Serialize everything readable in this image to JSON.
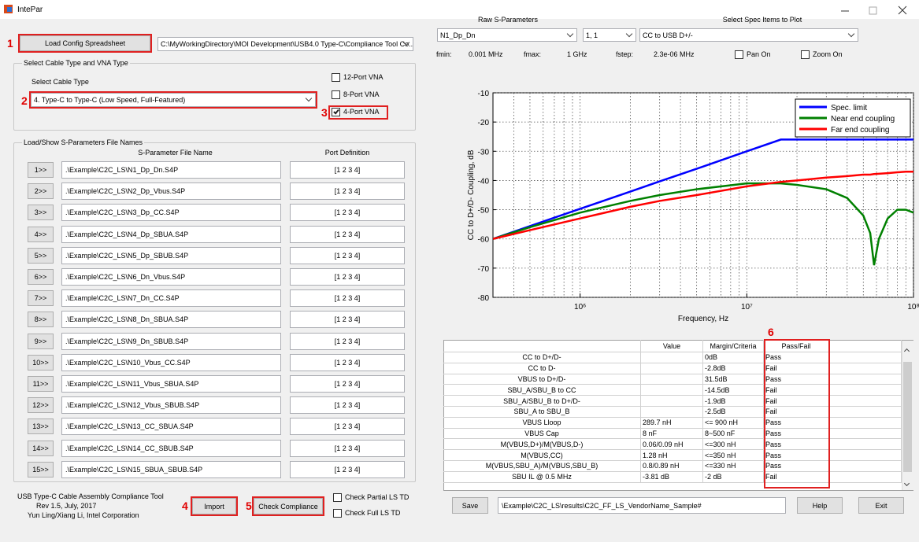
{
  "window_title": "IntePar",
  "markers": [
    "1",
    "2",
    "3",
    "4",
    "5",
    "6"
  ],
  "config": {
    "button": "Load Config Spreadsheet",
    "path": "C:\\MyWorkingDirectory\\MOI Development\\USB4.0 Type-C\\Compliance Tool Co..."
  },
  "cable_group": {
    "title": "Select Cable Type and VNA Type",
    "label": "Select Cable Type",
    "selected": "4. Type-C to Type-C (Low Speed, Full-Featured)",
    "vna": [
      {
        "label": "12-Port VNA",
        "checked": false
      },
      {
        "label": "8-Port VNA",
        "checked": false
      },
      {
        "label": "4-Port VNA",
        "checked": true
      }
    ]
  },
  "files_group": {
    "title": "Load/Show S-Parameters File Names",
    "headers": [
      "S-Parameter File Name",
      "Port Definition"
    ],
    "rows": [
      {
        "button": "1>>",
        "file": ".\\Example\\C2C_LS\\N1_Dp_Dn.S4P",
        "ports": "[1 2 3 4]"
      },
      {
        "button": "2>>",
        "file": ".\\Example\\C2C_LS\\N2_Dp_Vbus.S4P",
        "ports": "[1 2 3 4]"
      },
      {
        "button": "3>>",
        "file": ".\\Example\\C2C_LS\\N3_Dp_CC.S4P",
        "ports": "[1 2 3 4]"
      },
      {
        "button": "4>>",
        "file": ".\\Example\\C2C_LS\\N4_Dp_SBUA.S4P",
        "ports": "[1 2 3 4]"
      },
      {
        "button": "5>>",
        "file": ".\\Example\\C2C_LS\\N5_Dp_SBUB.S4P",
        "ports": "[1 2 3 4]"
      },
      {
        "button": "6>>",
        "file": ".\\Example\\C2C_LS\\N6_Dn_Vbus.S4P",
        "ports": "[1 2 3 4]"
      },
      {
        "button": "7>>",
        "file": ".\\Example\\C2C_LS\\N7_Dn_CC.S4P",
        "ports": "[1 2 3 4]"
      },
      {
        "button": "8>>",
        "file": ".\\Example\\C2C_LS\\N8_Dn_SBUA.S4P",
        "ports": "[1 2 3 4]"
      },
      {
        "button": "9>>",
        "file": ".\\Example\\C2C_LS\\N9_Dn_SBUB.S4P",
        "ports": "[1 2 3 4]"
      },
      {
        "button": "10>>",
        "file": ".\\Example\\C2C_LS\\N10_Vbus_CC.S4P",
        "ports": "[1 2 3 4]"
      },
      {
        "button": "11>>",
        "file": ".\\Example\\C2C_LS\\N11_Vbus_SBUA.S4P",
        "ports": "[1 2 3 4]"
      },
      {
        "button": "12>>",
        "file": ".\\Example\\C2C_LS\\N12_Vbus_SBUB.S4P",
        "ports": "[1 2 3 4]"
      },
      {
        "button": "13>>",
        "file": ".\\Example\\C2C_LS\\N13_CC_SBUA.S4P",
        "ports": "[1 2 3 4]"
      },
      {
        "button": "14>>",
        "file": ".\\Example\\C2C_LS\\N14_CC_SBUB.S4P",
        "ports": "[1 2 3 4]"
      },
      {
        "button": "15>>",
        "file": ".\\Example\\C2C_LS\\N15_SBUA_SBUB.S4P",
        "ports": "[1 2 3 4]"
      }
    ]
  },
  "footer": {
    "lines": [
      "USB Type-C Cable Assembly Compliance Tool",
      "Rev 1.5, July, 2017",
      "Yun Ling/Xiang Li, Intel Corporation"
    ],
    "import": "Import",
    "check": "Check Compliance",
    "options": [
      {
        "label": "Check Partial LS TD",
        "checked": false
      },
      {
        "label": "Check Full LS TD",
        "checked": false
      }
    ]
  },
  "plot_controls": {
    "raw_label": "Raw S-Parameters",
    "spec_label": "Select Spec Items to Plot",
    "file": "N1_Dp_Dn",
    "port": "1, 1",
    "spec": "CC to USB D+/-",
    "fmin_label": "fmin:",
    "fmin": "0.001 MHz",
    "fmax_label": "fmax:",
    "fmax": "1 GHz",
    "fstep_label": "fstep:",
    "fstep": "2.3e-06 MHz",
    "pan": {
      "label": "Pan On",
      "checked": false
    },
    "zoom": {
      "label": "Zoom On",
      "checked": false
    }
  },
  "chart_data": {
    "type": "line",
    "xlabel": "Frequency, Hz",
    "ylabel": "CC to D+/D- Coupling, dB",
    "x": [
      300000,
      500000,
      1000000,
      2000000,
      3000000,
      5000000,
      10000000,
      16000000,
      20000000,
      30000000,
      40000000,
      50000000,
      55000000,
      58000000,
      62000000,
      70000000,
      80000000,
      90000000,
      100000000
    ],
    "series": [
      {
        "name": "Spec. limit",
        "color": "#0000ff",
        "values": [
          -60,
          -55.6,
          -49.7,
          -43.8,
          -40.3,
          -36,
          -30,
          -26,
          -26,
          -26,
          -26,
          -26,
          -26,
          -26,
          -26,
          -26,
          -26,
          -26,
          -26
        ]
      },
      {
        "name": "Near end coupling",
        "color": "#008000",
        "values": [
          -60,
          -56,
          -51,
          -47,
          -45,
          -43,
          -41,
          -41,
          -41.5,
          -43,
          -46,
          -52,
          -58,
          -69,
          -60,
          -53,
          -50,
          -50,
          -51
        ]
      },
      {
        "name": "Far end coupling",
        "color": "#ff0000",
        "values": [
          -60,
          -57,
          -53,
          -49,
          -47,
          -45,
          -42,
          -40.5,
          -40,
          -39,
          -38.5,
          -38,
          -38,
          -37.8,
          -37.7,
          -37.5,
          -37.2,
          -37,
          -37
        ]
      }
    ],
    "xlim": [
      300000,
      100000000
    ],
    "ylim": [
      -80,
      -10
    ],
    "log_x": true,
    "xticks": [
      {
        "value": 1000000,
        "label": "10⁶"
      },
      {
        "value": 10000000,
        "label": "10⁷"
      },
      {
        "value": 100000000,
        "label": "10⁸"
      }
    ],
    "yticks": [
      -80,
      -70,
      -60,
      -50,
      -40,
      -30,
      -20,
      -10
    ],
    "grid": true,
    "legend": "upper right"
  },
  "results": {
    "headers": [
      "Value",
      "Margin/Criteria",
      "Pass/Fail"
    ],
    "rows": [
      {
        "item": "CC to D+/D-",
        "criteria": "0dB",
        "result": "Pass"
      },
      {
        "item": "CC to D-",
        "criteria": "-2.8dB",
        "result": "Fail"
      },
      {
        "item": "VBUS to D+/D-",
        "criteria": "31.5dB",
        "result": "Pass"
      },
      {
        "item": "SBU_A/SBU_B to CC",
        "criteria": "-14.5dB",
        "result": "Fail"
      },
      {
        "item": "SBU_A/SBU_B to D+/D-",
        "criteria": "-1.9dB",
        "result": "Fail"
      },
      {
        "item": "SBU_A to SBU_B",
        "criteria": "-2.5dB",
        "result": "Fail"
      },
      {
        "item": "VBUS Lloop",
        "value": "289.7 nH",
        "criteria": "<= 900 nH",
        "result": "Pass"
      },
      {
        "item": "VBUS Cap",
        "value": "8 nF",
        "criteria": "8~500 nF",
        "result": "Pass"
      },
      {
        "item": "M(VBUS,D+)/M(VBUS,D-)",
        "value": "0.06/0.09 nH",
        "criteria": "<=300 nH",
        "result": "Pass"
      },
      {
        "item": "M(VBUS,CC)",
        "value": "1.28 nH",
        "criteria": "<=350 nH",
        "result": "Pass"
      },
      {
        "item": "M(VBUS,SBU_A)/M(VBUS,SBU_B)",
        "value": "0.8/0.89 nH",
        "criteria": "<=330 nH",
        "result": "Pass"
      },
      {
        "item": "SBU IL @ 0.5 MHz",
        "value": "-3.81 dB",
        "criteria": "-2 dB",
        "result": "Fail"
      }
    ]
  },
  "bottom": {
    "save": "Save",
    "path": "\\Example\\C2C_LS\\results\\C2C_FF_LS_VendorName_Sample#",
    "help": "Help",
    "exit": "Exit"
  }
}
